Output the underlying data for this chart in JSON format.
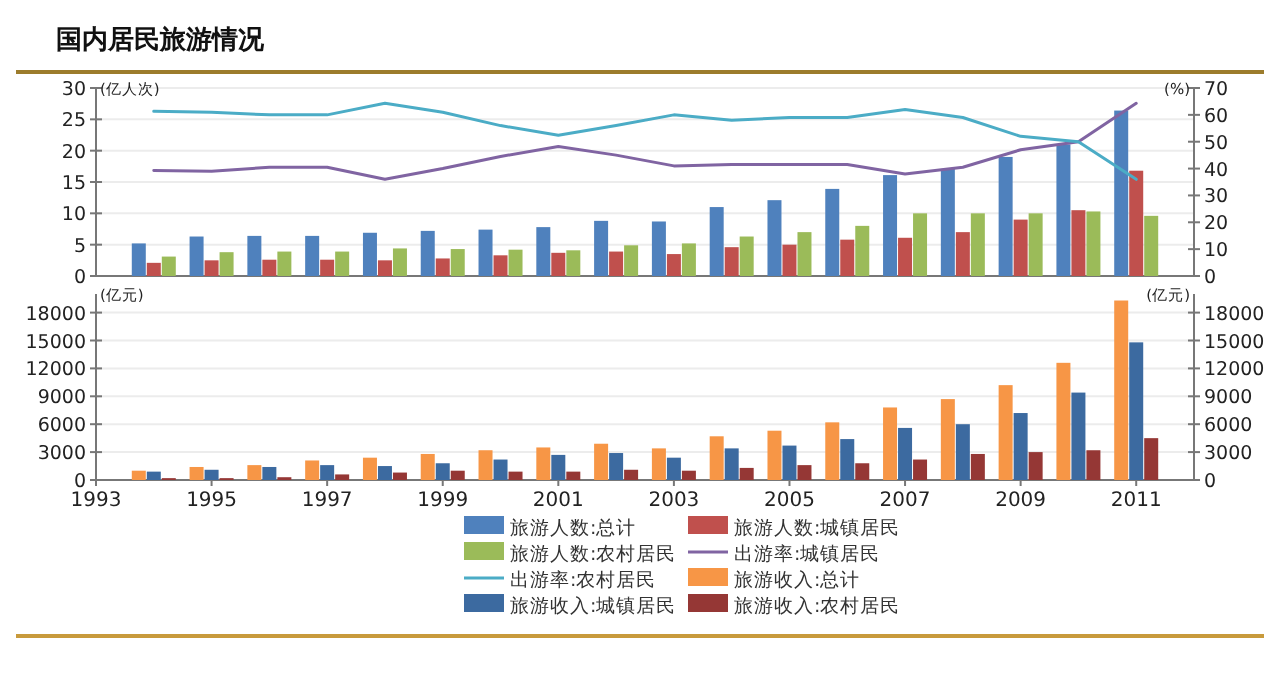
{
  "chart_data": [
    {
      "type": "bar",
      "title": "国内居民旅游情况",
      "ylabel": "(亿人次)",
      "y2label": "(%)",
      "x": [
        1994,
        1995,
        1996,
        1997,
        1998,
        1999,
        2000,
        2001,
        2002,
        2003,
        2004,
        2005,
        2006,
        2007,
        2008,
        2009,
        2010,
        2011
      ],
      "xlim": [
        1993,
        2012
      ],
      "ylim": [
        0,
        30
      ],
      "yticks": [
        0,
        5,
        10,
        15,
        20,
        25,
        30
      ],
      "y2lim": [
        0,
        70
      ],
      "y2ticks": [
        0,
        10,
        20,
        30,
        40,
        50,
        60,
        70
      ],
      "tick_labels": "y",
      "grid": "y",
      "legend": "bottom",
      "series": [
        {
          "name": "旅游人数:总计",
          "color": "#4f81bd",
          "values": [
            5.2,
            6.3,
            6.4,
            6.4,
            6.9,
            7.2,
            7.4,
            7.8,
            8.8,
            8.7,
            11.0,
            12.1,
            13.9,
            16.1,
            17.1,
            19.0,
            21.0,
            26.4
          ]
        },
        {
          "name": "旅游人数:城镇居民",
          "color": "#c0504d",
          "values": [
            2.1,
            2.5,
            2.6,
            2.6,
            2.5,
            2.8,
            3.3,
            3.7,
            3.9,
            3.5,
            4.6,
            5.0,
            5.8,
            6.1,
            7.0,
            9.0,
            10.5,
            16.8
          ]
        },
        {
          "name": "旅游人数:农村居民",
          "color": "#9bbb59",
          "values": [
            3.1,
            3.8,
            3.9,
            3.9,
            4.4,
            4.3,
            4.2,
            4.1,
            4.9,
            5.2,
            6.3,
            7.0,
            8.0,
            10.0,
            10.0,
            10.0,
            10.3,
            9.6
          ]
        },
        {
          "name": "出游率:城镇居民",
          "type": "line",
          "axis": "y2",
          "color": "#8064a2",
          "values": [
            39.3,
            39,
            40.5,
            40.5,
            36,
            40,
            44.5,
            48.2,
            45,
            41,
            41.5,
            41.5,
            41.5,
            38,
            40.5,
            47,
            50,
            64.3
          ]
        },
        {
          "name": "出游率:农村居民",
          "type": "line",
          "axis": "y2",
          "color": "#4bacc6",
          "values": [
            61.3,
            61,
            60,
            60,
            64.3,
            61,
            56,
            52.4,
            56,
            60,
            58,
            59,
            59,
            62,
            59,
            52,
            50,
            36
          ]
        }
      ]
    },
    {
      "type": "bar",
      "ylabel": "(亿元)",
      "y2label": "(亿元)",
      "x": [
        1994,
        1995,
        1996,
        1997,
        1998,
        1999,
        2000,
        2001,
        2002,
        2003,
        2004,
        2005,
        2006,
        2007,
        2008,
        2009,
        2010,
        2011
      ],
      "xlim": [
        1993,
        2012
      ],
      "xticks": [
        1993,
        1995,
        1997,
        1999,
        2001,
        2003,
        2005,
        2007,
        2009,
        2011
      ],
      "ylim": [
        0,
        20000
      ],
      "yticks": [
        0,
        3000,
        6000,
        9000,
        12000,
        15000,
        18000
      ],
      "y2lim": [
        0,
        20000
      ],
      "y2ticks": [
        0,
        3000,
        6000,
        9000,
        12000,
        15000,
        18000
      ],
      "grid": "y",
      "legend": "bottom",
      "series": [
        {
          "name": "旅游收入:总计",
          "color": "#f79646",
          "values": [
            1000,
            1400,
            1600,
            2100,
            2400,
            2800,
            3200,
            3500,
            3900,
            3400,
            4700,
            5300,
            6200,
            7800,
            8700,
            10200,
            12600,
            19300
          ]
        },
        {
          "name": "旅游收入:城镇居民",
          "color": "#3c6aa0",
          "values": [
            900,
            1100,
            1400,
            1600,
            1500,
            1800,
            2200,
            2700,
            2900,
            2400,
            3400,
            3700,
            4400,
            5600,
            6000,
            7200,
            9400,
            14800
          ]
        },
        {
          "name": "旅游收入:农村居民",
          "color": "#953735",
          "values": [
            200,
            200,
            300,
            600,
            800,
            1000,
            900,
            900,
            1100,
            1000,
            1300,
            1600,
            1800,
            2200,
            2800,
            3000,
            3200,
            4500
          ]
        }
      ]
    }
  ]
}
